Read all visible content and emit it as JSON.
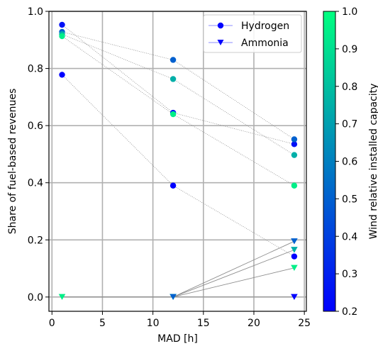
{
  "chart_data": {
    "type": "scatter",
    "xlabel": "MAD [h]",
    "ylabel": "Share of fuel-based revenues",
    "xlim": [
      -0.3,
      25.2
    ],
    "ylim": [
      -0.05,
      1.0
    ],
    "x_ticks": [
      0,
      5,
      10,
      15,
      20,
      25
    ],
    "x_tick_labels": [
      "0",
      "5",
      "10",
      "15",
      "20",
      "25"
    ],
    "y_ticks": [
      0.0,
      0.2,
      0.4,
      0.6,
      0.8,
      1.0
    ],
    "y_tick_labels": [
      "0.0",
      "0.2",
      "0.4",
      "0.6",
      "0.8",
      "1.0"
    ],
    "grid": true,
    "legend": {
      "position": "top-right",
      "entries": [
        {
          "label": "Hydrogen",
          "marker": "circle",
          "color": "#0000ff"
        },
        {
          "label": "Ammonia",
          "marker": "triangle-down",
          "color": "#0000ff"
        }
      ]
    },
    "colorbar": {
      "label": "Wind relative installed capacity",
      "min": 0.2,
      "max": 1.0,
      "ticks": [
        0.2,
        0.3,
        0.4,
        0.5,
        0.6,
        0.7,
        0.8,
        0.9,
        1.0
      ],
      "tick_labels": [
        "0.2",
        "0.3",
        "0.4",
        "0.5",
        "0.6",
        "0.7",
        "0.8",
        "0.9",
        "1.0"
      ],
      "colormap": "winter",
      "color_low": "#0000ff",
      "color_high": "#00ff80"
    },
    "series": [
      {
        "name": "Hydrogen",
        "marker": "circle",
        "points": [
          {
            "x": 1,
            "y": 0.953,
            "c": 0.25
          },
          {
            "x": 12,
            "y": 0.645,
            "c": 0.25
          },
          {
            "x": 24,
            "y": 0.535,
            "c": 0.25
          },
          {
            "x": 1,
            "y": 0.778,
            "c": 0.2
          },
          {
            "x": 12,
            "y": 0.39,
            "c": 0.2
          },
          {
            "x": 24,
            "y": 0.142,
            "c": 0.2
          },
          {
            "x": 1,
            "y": 0.928,
            "c": 0.5
          },
          {
            "x": 12,
            "y": 0.83,
            "c": 0.5
          },
          {
            "x": 24,
            "y": 0.552,
            "c": 0.5
          },
          {
            "x": 1,
            "y": 0.92,
            "c": 0.75
          },
          {
            "x": 12,
            "y": 0.763,
            "c": 0.75
          },
          {
            "x": 24,
            "y": 0.497,
            "c": 0.75
          },
          {
            "x": 1,
            "y": 0.913,
            "c": 0.95
          },
          {
            "x": 12,
            "y": 0.64,
            "c": 0.95
          },
          {
            "x": 24,
            "y": 0.39,
            "c": 0.95
          }
        ]
      },
      {
        "name": "Ammonia",
        "marker": "triangle-down",
        "points": [
          {
            "x": 1,
            "y": 0.0,
            "c": 0.95
          },
          {
            "x": 12,
            "y": 0.0,
            "c": 0.95
          },
          {
            "x": 12,
            "y": 0.0,
            "c": 0.5
          },
          {
            "x": 24,
            "y": 0.195,
            "c": 0.5
          },
          {
            "x": 24,
            "y": 0.165,
            "c": 0.75
          },
          {
            "x": 24,
            "y": 0.102,
            "c": 0.95
          },
          {
            "x": 24,
            "y": 0.0,
            "c": 0.2
          }
        ]
      }
    ],
    "connectors": [
      {
        "style": "dotted",
        "points": [
          [
            1,
            0.953
          ],
          [
            12,
            0.645
          ],
          [
            24,
            0.535
          ]
        ]
      },
      {
        "style": "dotted",
        "points": [
          [
            1,
            0.778
          ],
          [
            12,
            0.39
          ],
          [
            24,
            0.142
          ]
        ]
      },
      {
        "style": "dotted",
        "points": [
          [
            1,
            0.928
          ],
          [
            12,
            0.83
          ],
          [
            24,
            0.552
          ]
        ]
      },
      {
        "style": "dotted",
        "points": [
          [
            1,
            0.92
          ],
          [
            12,
            0.763
          ],
          [
            24,
            0.497
          ]
        ]
      },
      {
        "style": "dotted",
        "points": [
          [
            1,
            0.913
          ],
          [
            12,
            0.64
          ],
          [
            24,
            0.39
          ]
        ]
      },
      {
        "style": "solid",
        "points": [
          [
            1,
            0.0
          ],
          [
            12,
            0.0
          ],
          [
            24,
            0.195
          ]
        ]
      },
      {
        "style": "solid",
        "points": [
          [
            1,
            0.0
          ],
          [
            12,
            0.0
          ],
          [
            24,
            0.165
          ]
        ]
      },
      {
        "style": "solid",
        "points": [
          [
            1,
            0.0
          ],
          [
            12,
            0.0
          ],
          [
            24,
            0.102
          ]
        ]
      },
      {
        "style": "solid",
        "points": [
          [
            1,
            0.0
          ],
          [
            12,
            0.0
          ],
          [
            24,
            0.0
          ]
        ]
      }
    ]
  }
}
